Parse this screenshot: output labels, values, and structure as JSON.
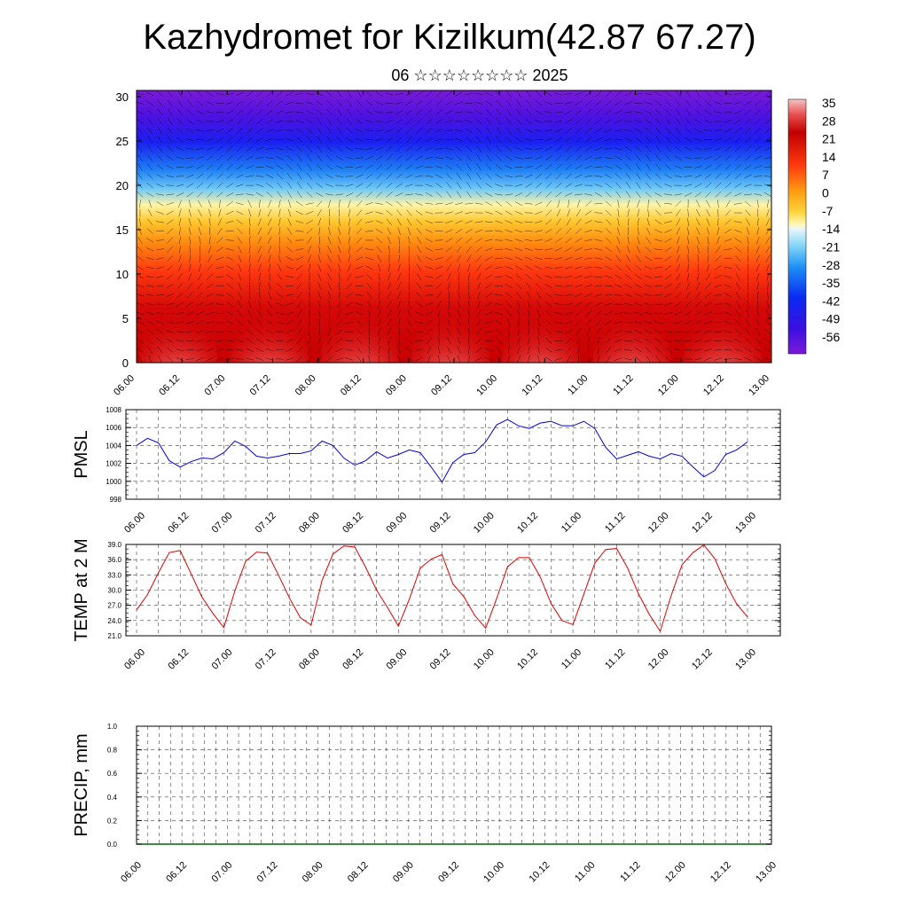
{
  "header": {
    "title": "Kazhydromet for Kizilkum(42.87 67.27)",
    "subtitle": "06 ☆☆☆☆☆☆☆☆ 2025"
  },
  "colors": {
    "pmsl_line": "#0000dd",
    "temp_line": "#dd0000",
    "precip_baseline": "#006400",
    "wind_arrow": "#000000",
    "colormap": [
      "#7a1ad8",
      "#3a10e0",
      "#0a2af0",
      "#1e8ff5",
      "#7ed3f7",
      "#e8f6fb",
      "#fff7b0",
      "#ffd23a",
      "#ff9a10",
      "#ff4a10",
      "#e01010",
      "#c00000",
      "#e85050",
      "#f4b4b4"
    ]
  },
  "chart_data": [
    {
      "type": "heatmap",
      "name": "cross-section",
      "x_tick_labels": [
        "06.00",
        "06.12",
        "07.00",
        "07.12",
        "08.00",
        "08.12",
        "09.00",
        "09.12",
        "10.00",
        "10.12",
        "11.00",
        "11.12",
        "12.00",
        "12.12",
        "13.00"
      ],
      "y_tick_labels": [
        "0",
        "5",
        "10",
        "15",
        "20",
        "25",
        "30"
      ],
      "ylim": [
        0,
        30.7
      ],
      "colorbar_labels": [
        "35",
        "28",
        "21",
        "14",
        "7",
        "0",
        "-7",
        "-14",
        "-21",
        "-28",
        "-35",
        "-42",
        "-49",
        "-56"
      ],
      "colorbar_range": [
        -60,
        38
      ],
      "overlay": "wind arrows"
    },
    {
      "type": "line",
      "ylabel": "PMSL",
      "ylim": [
        998,
        1008
      ],
      "y_tick_labels": [
        "998",
        "1000",
        "1002",
        "1004",
        "1006",
        "1008"
      ],
      "x_tick_labels": [
        "06.00",
        "06.12",
        "07.00",
        "07.12",
        "08.00",
        "08.12",
        "09.00",
        "09.12",
        "10.00",
        "10.12",
        "11.00",
        "11.12",
        "12.00",
        "12.12",
        "13.00"
      ],
      "series": [
        {
          "values": [
            1004.0,
            1004.8,
            1004.3,
            1002.3,
            1001.6,
            1002.2,
            1002.6,
            1002.5,
            1003.2,
            1004.5,
            1003.9,
            1002.8,
            1002.6,
            1002.8,
            1003.1,
            1003.1,
            1003.4,
            1004.5,
            1004.0,
            1002.6,
            1001.8,
            1002.3,
            1003.3,
            1002.6,
            1003.0,
            1003.5,
            1003.2,
            1001.6,
            999.9,
            1002.1,
            1003.0,
            1003.2,
            1004.4,
            1006.3,
            1006.9,
            1006.2,
            1005.9,
            1006.5,
            1006.7,
            1006.2,
            1006.2,
            1006.7,
            1005.9,
            1003.8,
            1002.5,
            1002.9,
            1003.3,
            1002.8,
            1002.5,
            1003.1,
            1002.8,
            1001.6,
            1000.5,
            1001.2,
            1003.0,
            1003.5,
            1004.4
          ]
        }
      ]
    },
    {
      "type": "line",
      "ylabel": "TEMP at 2 M",
      "ylim": [
        21,
        39
      ],
      "y_tick_labels": [
        "21.0",
        "24.0",
        "27.0",
        "30.0",
        "33.0",
        "36.0",
        "39.0"
      ],
      "x_tick_labels": [
        "06.00",
        "06.12",
        "07.00",
        "07.12",
        "08.00",
        "08.12",
        "09.00",
        "09.12",
        "10.00",
        "10.12",
        "11.00",
        "11.12",
        "12.00",
        "12.12",
        "13.00"
      ],
      "series": [
        {
          "values": [
            26.1,
            29.1,
            33.4,
            37.4,
            37.8,
            33.2,
            28.6,
            25.4,
            22.6,
            29.8,
            35.7,
            37.5,
            37.3,
            33.0,
            28.5,
            24.6,
            23.1,
            31.9,
            37.1,
            38.7,
            38.5,
            34.5,
            30.0,
            26.6,
            22.9,
            28.2,
            34.3,
            36.1,
            37.0,
            31.2,
            28.7,
            25.0,
            22.5,
            28.3,
            34.6,
            36.4,
            36.4,
            32.6,
            27.3,
            24.0,
            23.2,
            29.2,
            35.3,
            38.0,
            38.2,
            34.4,
            29.3,
            25.2,
            21.9,
            28.9,
            35.0,
            37.4,
            38.9,
            36.2,
            31.3,
            27.3,
            24.7
          ]
        }
      ]
    },
    {
      "type": "bar",
      "ylabel": "PRECIP, mm",
      "ylim": [
        0.0,
        1.0
      ],
      "y_tick_labels": [
        "0.0",
        "0.2",
        "0.4",
        "0.6",
        "0.8",
        "1.0"
      ],
      "x_tick_labels": [
        "06.00",
        "06.12",
        "07.00",
        "07.12",
        "08.00",
        "08.12",
        "09.00",
        "09.12",
        "10.00",
        "10.12",
        "11.00",
        "11.12",
        "12.00",
        "12.12",
        "13.00"
      ],
      "values": []
    }
  ]
}
